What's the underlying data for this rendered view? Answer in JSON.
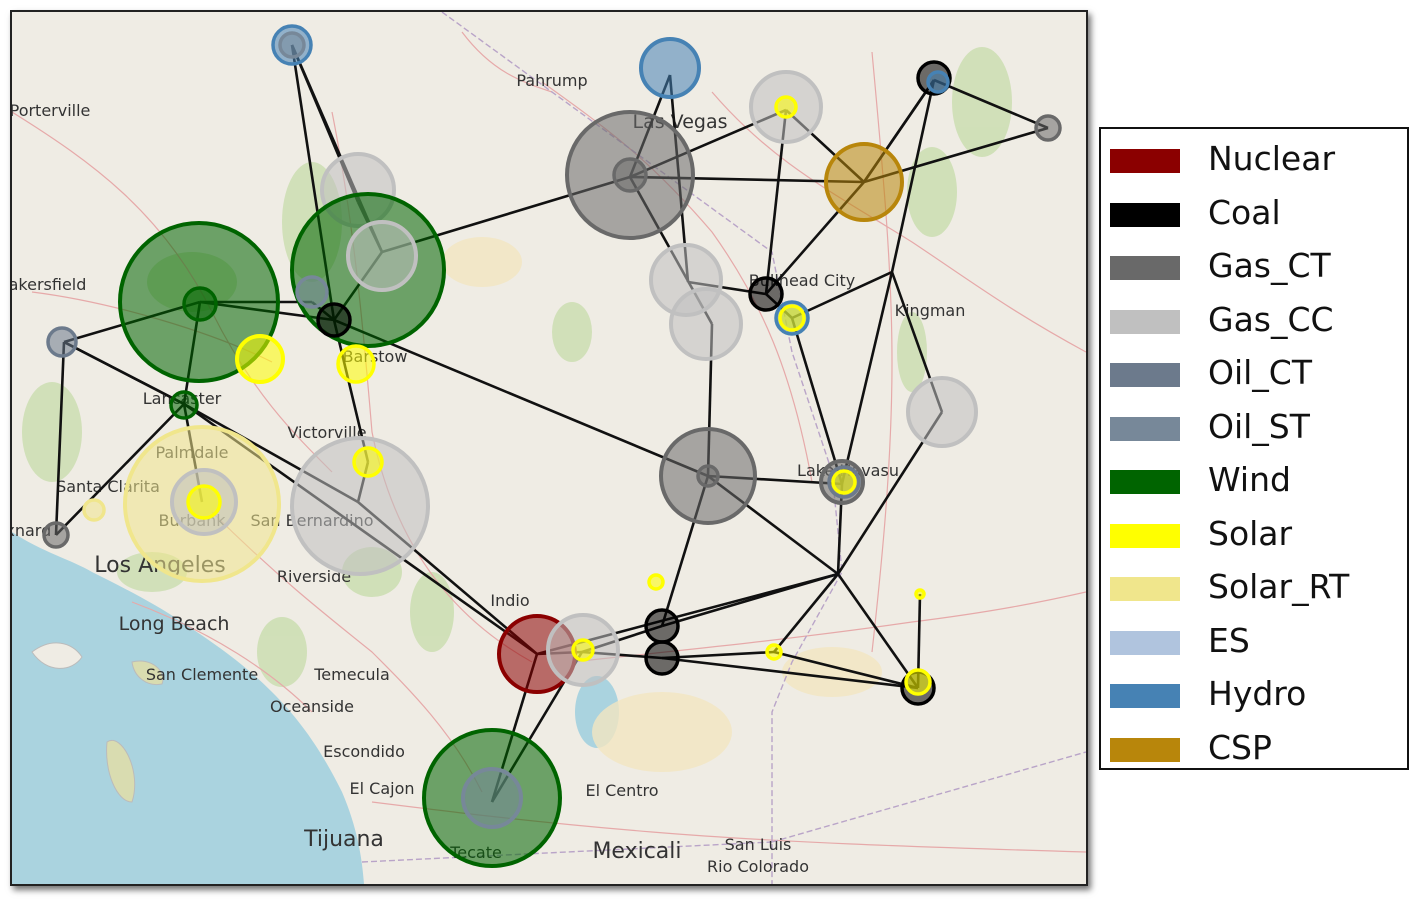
{
  "map": {
    "places": [
      {
        "name": "Pahrump",
        "size": "small"
      },
      {
        "name": "Las Vegas",
        "size": "medium"
      },
      {
        "name": "Bullhead City",
        "size": "small"
      },
      {
        "name": "Kingman",
        "size": "small"
      },
      {
        "name": "Lake Havasu",
        "size": "small"
      },
      {
        "name": "Barstow",
        "size": "small"
      },
      {
        "name": "Victorville",
        "size": "small"
      },
      {
        "name": "Lancaster",
        "size": "small"
      },
      {
        "name": "Palmdale",
        "size": "small"
      },
      {
        "name": "Santa Clarita",
        "size": "small"
      },
      {
        "name": "Burbank",
        "size": "small"
      },
      {
        "name": "San Bernardino",
        "size": "small"
      },
      {
        "name": "Los Angeles",
        "size": "large"
      },
      {
        "name": "Riverside",
        "size": "small"
      },
      {
        "name": "Long Beach",
        "size": "medium"
      },
      {
        "name": "San Clemente",
        "size": "small"
      },
      {
        "name": "Temecula",
        "size": "small"
      },
      {
        "name": "Oceanside",
        "size": "small"
      },
      {
        "name": "Escondido",
        "size": "small"
      },
      {
        "name": "El Cajon",
        "size": "small"
      },
      {
        "name": "Tijuana",
        "size": "large"
      },
      {
        "name": "Tecate",
        "size": "small"
      },
      {
        "name": "Indio",
        "size": "small"
      },
      {
        "name": "El Centro",
        "size": "small"
      },
      {
        "name": "Mexicali",
        "size": "large"
      },
      {
        "name": "San Luis Rio Colorado",
        "size": "small"
      },
      {
        "name": "Bakersfield",
        "size": "small"
      },
      {
        "name": "Porterville",
        "size": "small"
      },
      {
        "name": "Oxnard",
        "size": "small"
      }
    ]
  },
  "colors": {
    "Nuclear": "#8b0000",
    "Coal": "#000000",
    "Gas_CT": "#696969",
    "Gas_CC": "#c0c0c0",
    "Oil_CT": "#6c7a8c",
    "Oil_ST": "#778899",
    "Wind": "#006400",
    "Solar": "#ffff00",
    "Solar_RT": "#f0e68c",
    "ES": "#b0c4de",
    "Hydro": "#4682b4",
    "CSP": "#b8860b",
    "line": "#111111",
    "water": "#aad3df",
    "land": "#efece4"
  },
  "legend": {
    "items": [
      {
        "label": "Nuclear",
        "color": "#8b0000"
      },
      {
        "label": "Coal",
        "color": "#000000"
      },
      {
        "label": "Gas_CT",
        "color": "#696969"
      },
      {
        "label": "Gas_CC",
        "color": "#c0c0c0"
      },
      {
        "label": "Oil_CT",
        "color": "#6c7a8c"
      },
      {
        "label": "Oil_ST",
        "color": "#778899"
      },
      {
        "label": "Wind",
        "color": "#006400"
      },
      {
        "label": "Solar",
        "color": "#ffff00"
      },
      {
        "label": "Solar_RT",
        "color": "#f0e68c"
      },
      {
        "label": "ES",
        "color": "#b0c4de"
      },
      {
        "label": "Hydro",
        "color": "#4682b4"
      },
      {
        "label": "CSP",
        "color": "#b8860b"
      }
    ]
  }
}
